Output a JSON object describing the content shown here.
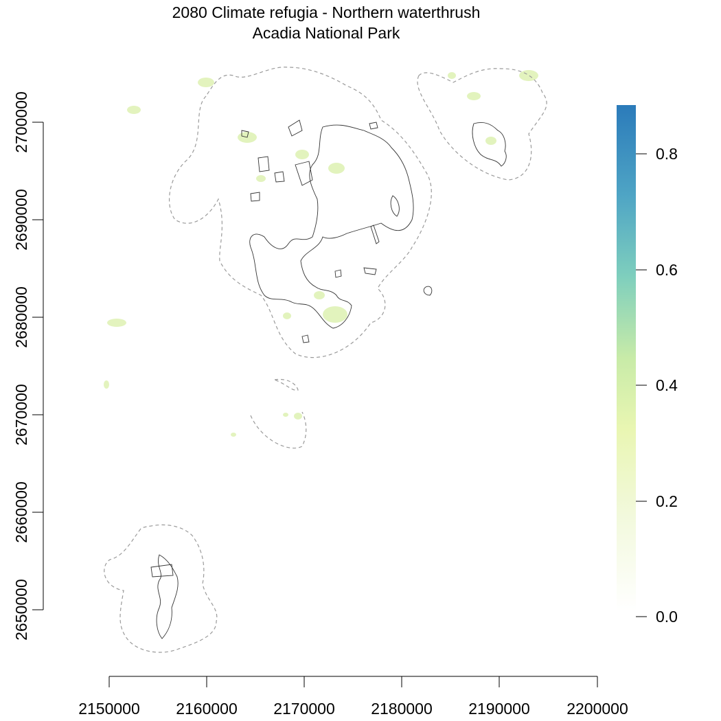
{
  "title": {
    "line1": "2080 Climate refugia - Northern waterthrush",
    "line2": "Acadia National Park"
  },
  "x_axis": {
    "tick_labels": [
      "2150000",
      "2160000",
      "2170000",
      "2180000",
      "2190000",
      "2200000"
    ]
  },
  "y_axis": {
    "tick_labels": [
      "2650000",
      "2660000",
      "2670000",
      "2680000",
      "2690000",
      "2700000"
    ]
  },
  "legend": {
    "tick_labels": [
      "0.0",
      "0.2",
      "0.4",
      "0.6",
      "0.8"
    ],
    "colors": [
      "#ffffff",
      "#f2f9dc",
      "#e9f6b2",
      "#c8eba8",
      "#7fcfbd",
      "#4fa5c5",
      "#2b7bba"
    ]
  },
  "map": {
    "park_outline_color": "#333333",
    "buffer_outline_color": "#9a9a9a",
    "refugia_color": "#d9efa8"
  }
}
